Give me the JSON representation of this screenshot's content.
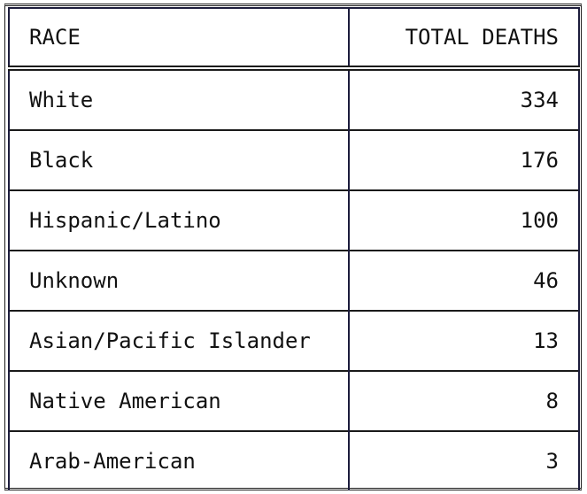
{
  "table": {
    "headers": [
      "RACE",
      "TOTAL DEATHS"
    ],
    "rows": [
      [
        "White",
        "334"
      ],
      [
        "Black",
        "176"
      ],
      [
        "Hispanic/Latino",
        "100"
      ],
      [
        "Unknown",
        "46"
      ],
      [
        "Asian/Pacific Islander",
        "13"
      ],
      [
        "Native American",
        "8"
      ],
      [
        "Arab-American",
        "3"
      ]
    ]
  },
  "chart_data": {
    "type": "table",
    "columns": [
      "RACE",
      "TOTAL DEATHS"
    ],
    "categories": [
      "White",
      "Black",
      "Hispanic/Latino",
      "Unknown",
      "Asian/Pacific Islander",
      "Native American",
      "Arab-American"
    ],
    "values": [
      334,
      176,
      100,
      46,
      13,
      8,
      3
    ]
  }
}
